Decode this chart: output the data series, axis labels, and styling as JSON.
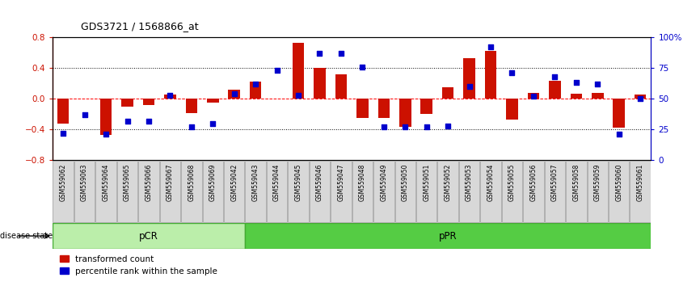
{
  "title": "GDS3721 / 1568866_at",
  "samples": [
    "GSM559062",
    "GSM559063",
    "GSM559064",
    "GSM559065",
    "GSM559066",
    "GSM559067",
    "GSM559068",
    "GSM559069",
    "GSM559042",
    "GSM559043",
    "GSM559044",
    "GSM559045",
    "GSM559046",
    "GSM559047",
    "GSM559048",
    "GSM559049",
    "GSM559050",
    "GSM559051",
    "GSM559052",
    "GSM559053",
    "GSM559054",
    "GSM559055",
    "GSM559056",
    "GSM559057",
    "GSM559058",
    "GSM559059",
    "GSM559060",
    "GSM559061"
  ],
  "transformed_count": [
    -0.32,
    0.0,
    -0.47,
    -0.1,
    -0.08,
    0.05,
    -0.19,
    -0.05,
    0.12,
    0.22,
    0.0,
    0.73,
    0.4,
    0.32,
    -0.25,
    -0.25,
    -0.37,
    -0.2,
    0.15,
    0.53,
    0.62,
    -0.27,
    0.07,
    0.23,
    0.06,
    0.07,
    -0.38,
    0.05
  ],
  "percentile_rank": [
    22,
    37,
    21,
    32,
    32,
    53,
    27,
    30,
    54,
    62,
    73,
    53,
    87,
    87,
    76,
    27,
    27,
    27,
    28,
    60,
    92,
    71,
    52,
    68,
    63,
    62,
    21,
    50
  ],
  "group_labels": [
    "pCR",
    "pPR"
  ],
  "pcr_count": 9,
  "ppr_count": 19,
  "group_colors": [
    "#bbeeaa",
    "#55cc44"
  ],
  "bar_color": "#cc1100",
  "dot_color": "#0000cc",
  "ylim_left": [
    -0.8,
    0.8
  ],
  "ylim_right": [
    0,
    100
  ],
  "yticks_left": [
    -0.8,
    -0.4,
    0.0,
    0.4,
    0.8
  ],
  "yticks_right": [
    0,
    25,
    50,
    75,
    100
  ],
  "ytick_labels_right": [
    "0",
    "25",
    "50",
    "75",
    "100%"
  ]
}
